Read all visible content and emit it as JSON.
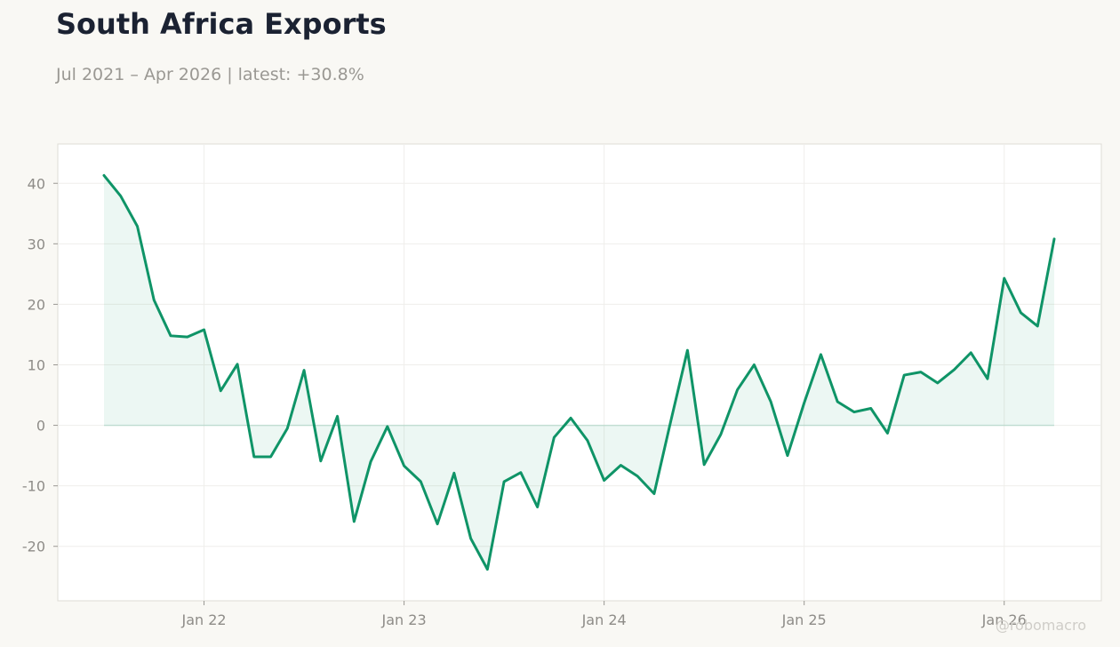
{
  "header": {
    "title": "South Africa Exports",
    "subtitle": "Jul 2021 – Apr 2026 | latest: +30.8%"
  },
  "watermark": "@robomacro",
  "colors": {
    "line": "#0f9467",
    "fill": "#0f9467",
    "background": "#f9f8f4",
    "plot_background": "#ffffff"
  },
  "chart_data": {
    "type": "area",
    "title": "South Africa Exports",
    "xlabel": "",
    "ylabel": "",
    "x_start": "2021-07",
    "x_end": "2026-04",
    "x_ticks": [
      {
        "label": "Jan 22",
        "date": "2022-01"
      },
      {
        "label": "Jan 23",
        "date": "2023-01"
      },
      {
        "label": "Jan 24",
        "date": "2024-01"
      },
      {
        "label": "Jan 25",
        "date": "2025-01"
      },
      {
        "label": "Jan 26",
        "date": "2026-01"
      }
    ],
    "y_ticks": [
      -20,
      -10,
      0,
      10,
      20,
      30,
      40
    ],
    "ylim": [
      -29,
      46.5
    ],
    "grid": true,
    "legend": "none",
    "series": [
      {
        "values": [
          {
            "x": "2021-07",
            "y": 41.3
          },
          {
            "x": "2021-08",
            "y": 37.9
          },
          {
            "x": "2021-09",
            "y": 32.9
          },
          {
            "x": "2021-10",
            "y": 20.7
          },
          {
            "x": "2021-11",
            "y": 14.8
          },
          {
            "x": "2021-12",
            "y": 14.6
          },
          {
            "x": "2022-01",
            "y": 15.8
          },
          {
            "x": "2022-02",
            "y": 5.7
          },
          {
            "x": "2022-03",
            "y": 10.1
          },
          {
            "x": "2022-04",
            "y": -5.2
          },
          {
            "x": "2022-05",
            "y": -5.2
          },
          {
            "x": "2022-06",
            "y": -0.5
          },
          {
            "x": "2022-07",
            "y": 9.1
          },
          {
            "x": "2022-08",
            "y": -5.9
          },
          {
            "x": "2022-09",
            "y": 1.5
          },
          {
            "x": "2022-10",
            "y": -15.9
          },
          {
            "x": "2022-11",
            "y": -6.0
          },
          {
            "x": "2022-12",
            "y": -0.2
          },
          {
            "x": "2023-01",
            "y": -6.7
          },
          {
            "x": "2023-02",
            "y": -9.3
          },
          {
            "x": "2023-03",
            "y": -16.3
          },
          {
            "x": "2023-04",
            "y": -7.9
          },
          {
            "x": "2023-05",
            "y": -18.7
          },
          {
            "x": "2023-06",
            "y": -23.8
          },
          {
            "x": "2023-07",
            "y": -9.3
          },
          {
            "x": "2023-08",
            "y": -7.8
          },
          {
            "x": "2023-09",
            "y": -13.5
          },
          {
            "x": "2023-10",
            "y": -2.0
          },
          {
            "x": "2023-11",
            "y": 1.2
          },
          {
            "x": "2023-12",
            "y": -2.5
          },
          {
            "x": "2024-01",
            "y": -9.1
          },
          {
            "x": "2024-02",
            "y": -6.6
          },
          {
            "x": "2024-03",
            "y": -8.4
          },
          {
            "x": "2024-04",
            "y": -11.3
          },
          {
            "x": "2024-05",
            "y": 0.7
          },
          {
            "x": "2024-06",
            "y": 12.4
          },
          {
            "x": "2024-07",
            "y": -6.5
          },
          {
            "x": "2024-08",
            "y": -1.5
          },
          {
            "x": "2024-09",
            "y": 5.9
          },
          {
            "x": "2024-10",
            "y": 10.0
          },
          {
            "x": "2024-11",
            "y": 3.9
          },
          {
            "x": "2024-12",
            "y": -5.0
          },
          {
            "x": "2025-01",
            "y": 3.7
          },
          {
            "x": "2025-02",
            "y": 11.7
          },
          {
            "x": "2025-03",
            "y": 3.9
          },
          {
            "x": "2025-04",
            "y": 2.2
          },
          {
            "x": "2025-05",
            "y": 2.8
          },
          {
            "x": "2025-06",
            "y": -1.3
          },
          {
            "x": "2025-07",
            "y": 8.3
          },
          {
            "x": "2025-08",
            "y": 8.8
          },
          {
            "x": "2025-09",
            "y": 7.0
          },
          {
            "x": "2025-10",
            "y": 9.2
          },
          {
            "x": "2025-11",
            "y": 12.0
          },
          {
            "x": "2025-12",
            "y": 7.7
          },
          {
            "x": "2026-01",
            "y": 24.3
          },
          {
            "x": "2026-02",
            "y": 18.6
          },
          {
            "x": "2026-03",
            "y": 16.4
          },
          {
            "x": "2026-04",
            "y": 30.8
          }
        ]
      }
    ]
  }
}
